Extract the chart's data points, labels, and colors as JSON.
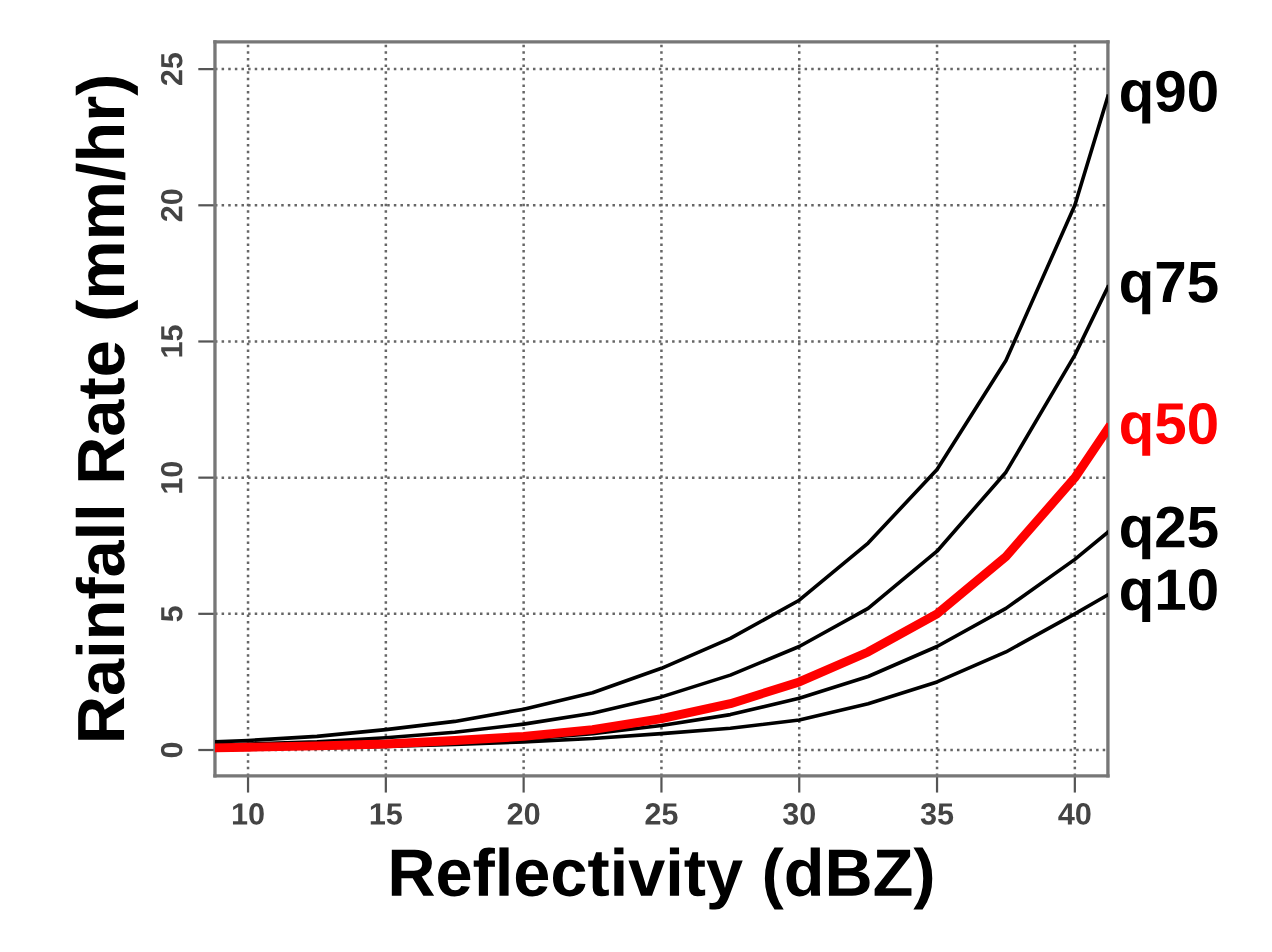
{
  "chart_data": {
    "type": "line",
    "xlabel": "Reflectivity (dBZ)",
    "ylabel": "Rainfall Rate (mm/hr)",
    "x": [
      8.8,
      10,
      12.5,
      15,
      17.5,
      20,
      22.5,
      25,
      27.5,
      30,
      32.5,
      35,
      37.5,
      40,
      41.2
    ],
    "xlim": [
      8.8,
      41.2
    ],
    "xticks": [
      10,
      15,
      20,
      25,
      30,
      35,
      40
    ],
    "ylim": [
      -0.95,
      26
    ],
    "yticks": [
      0,
      5,
      10,
      15,
      20,
      25
    ],
    "grid": true,
    "legend": false,
    "line_style": "solid",
    "marker": "none",
    "series": [
      {
        "name": "q90",
        "color": "#000000",
        "values": [
          0.3,
          0.35,
          0.5,
          0.75,
          1.05,
          1.5,
          2.1,
          3.0,
          4.1,
          5.5,
          7.6,
          10.3,
          14.3,
          20,
          24
        ]
      },
      {
        "name": "q75",
        "color": "#000000",
        "values": [
          0.18,
          0.22,
          0.3,
          0.45,
          0.65,
          0.95,
          1.35,
          1.95,
          2.75,
          3.8,
          5.2,
          7.3,
          10.2,
          14.5,
          17
        ]
      },
      {
        "name": "q50",
        "color": "#ff0000",
        "values": [
          0.08,
          0.1,
          0.15,
          0.22,
          0.35,
          0.5,
          0.75,
          1.15,
          1.7,
          2.5,
          3.6,
          5.0,
          7.1,
          10,
          11.8
        ]
      },
      {
        "name": "q25",
        "color": "#000000",
        "values": [
          0.05,
          0.06,
          0.1,
          0.17,
          0.26,
          0.4,
          0.6,
          0.9,
          1.3,
          1.9,
          2.7,
          3.8,
          5.2,
          7.0,
          8.0
        ]
      },
      {
        "name": "q10",
        "color": "#000000",
        "values": [
          0.04,
          0.05,
          0.08,
          0.13,
          0.2,
          0.3,
          0.42,
          0.6,
          0.8,
          1.1,
          1.7,
          2.5,
          3.6,
          5.0,
          5.7
        ]
      }
    ]
  }
}
